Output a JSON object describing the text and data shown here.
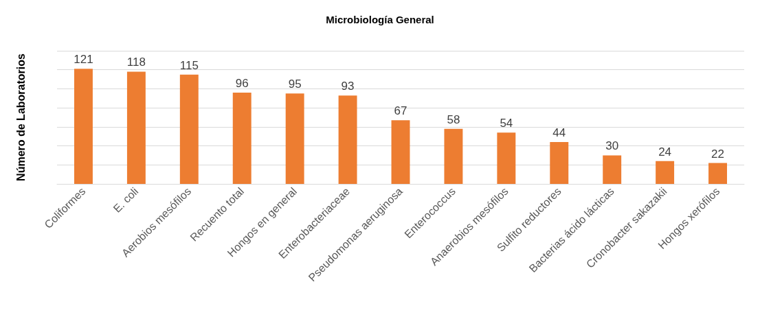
{
  "chart_data": {
    "type": "bar",
    "title": "Microbiología General",
    "ylabel": "Número de Laboratorios",
    "categories": [
      "Coliformes",
      "E. coli",
      "Aerobios mesófilos",
      "Recuento total",
      "Hongos en general",
      "Enterobacteriaceae",
      "Pseudomonas aeruginosa",
      "Enterococcus",
      "Anaerobios mesófilos",
      "Sulfito reductores",
      "Bacterias ácido lácticas",
      "Cronobacter sakazakii",
      "Hongos xerófilos"
    ],
    "values": [
      121,
      118,
      115,
      96,
      95,
      93,
      67,
      58,
      54,
      44,
      30,
      24,
      22
    ],
    "color": "#ed7d31",
    "data_labels": true,
    "grid": "y",
    "tick_labels": "x",
    "ylim": [
      0,
      140
    ],
    "yticks": [
      {
        "value": 0,
        "label": null
      },
      {
        "value": 20,
        "label": null
      },
      {
        "value": 40,
        "label": null
      },
      {
        "value": 60,
        "label": null
      },
      {
        "value": 80,
        "label": null
      },
      {
        "value": 100,
        "label": null
      },
      {
        "value": 120,
        "label": null
      },
      {
        "value": 140,
        "label": null
      }
    ]
  }
}
